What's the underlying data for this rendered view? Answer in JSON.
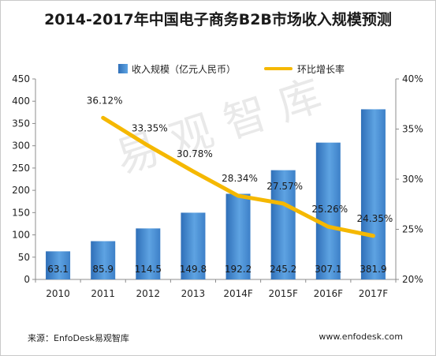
{
  "title": "2014-2017年中国电子商务B2B市场收入规模预测",
  "watermark": "易观智库",
  "footer": {
    "source": "来源：EnfoDesk易观智库",
    "website": "www.enfodesk.com"
  },
  "colors": {
    "bar_dark": "#2f6fb8",
    "bar_light": "#6aaeea",
    "line": "#f5b800"
  },
  "chart_data": {
    "type": "bar",
    "categories": [
      "2010",
      "2011",
      "2012",
      "2013",
      "2014F",
      "2015F",
      "2016F",
      "2017F"
    ],
    "series": [
      {
        "name": "收入规模（亿元人民币）",
        "type": "bar",
        "axis": "left",
        "values": [
          63.1,
          85.9,
          114.5,
          149.8,
          192.2,
          245.2,
          307.1,
          381.9
        ],
        "labels": [
          "63.1",
          "85.9",
          "114.5",
          "149.8",
          "192.2",
          "245.2",
          "307.1",
          "381.9"
        ]
      },
      {
        "name": "环比增长率",
        "type": "line",
        "axis": "right",
        "x": [
          "2011",
          "2012",
          "2013",
          "2014F",
          "2015F",
          "2016F",
          "2017F"
        ],
        "values": [
          36.12,
          33.35,
          30.78,
          28.34,
          27.57,
          25.26,
          24.35
        ],
        "labels": [
          "36.12%",
          "33.35%",
          "30.78%",
          "28.34%",
          "27.57%",
          "25.26%",
          "24.35%"
        ]
      }
    ],
    "y_left": {
      "min": 0,
      "max": 450,
      "step": 50,
      "ticks": [
        "0",
        "50",
        "100",
        "150",
        "200",
        "250",
        "300",
        "350",
        "400",
        "450"
      ]
    },
    "y_right": {
      "min": 20,
      "max": 40,
      "step": 5,
      "ticks": [
        "20%",
        "25%",
        "30%",
        "35%",
        "40%"
      ]
    },
    "legend_position": "top",
    "grid": false
  }
}
